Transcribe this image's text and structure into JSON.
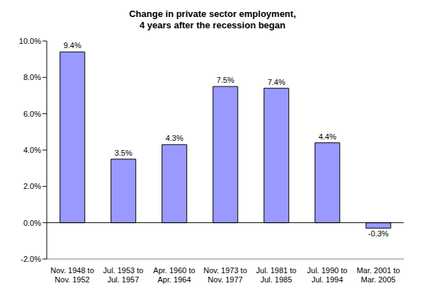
{
  "chart_data": {
    "type": "bar",
    "title": "Change in private sector employment, 4 years after the recession began",
    "categories": [
      "Nov. 1948 to Nov. 1952",
      "Jul. 1953 to Jul. 1957",
      "Apr. 1960 to Apr. 1964",
      "Nov. 1973 to Nov. 1977",
      "Jul. 1981 to Jul. 1985",
      "Jul. 1990 to Jul. 1994",
      "Mar. 2001 to Mar. 2005"
    ],
    "values": [
      9.4,
      3.5,
      4.3,
      7.5,
      7.4,
      4.4,
      -0.3
    ],
    "value_labels": [
      "9.4%",
      "3.5%",
      "4.3%",
      "7.5%",
      "7.4%",
      "4.4%",
      "-0.3%"
    ],
    "color": "#9999ff",
    "ylim": [
      -2,
      10
    ],
    "yticks": [
      {
        "value": -2,
        "label": "-2.0%"
      },
      {
        "value": 0,
        "label": "0.0%"
      },
      {
        "value": 2,
        "label": "2.0%"
      },
      {
        "value": 4,
        "label": "4.0%"
      },
      {
        "value": 6,
        "label": "6.0%"
      },
      {
        "value": 8,
        "label": "8.0%"
      },
      {
        "value": 10,
        "label": "10.0%"
      }
    ],
    "grid": false,
    "data_labels": true
  }
}
